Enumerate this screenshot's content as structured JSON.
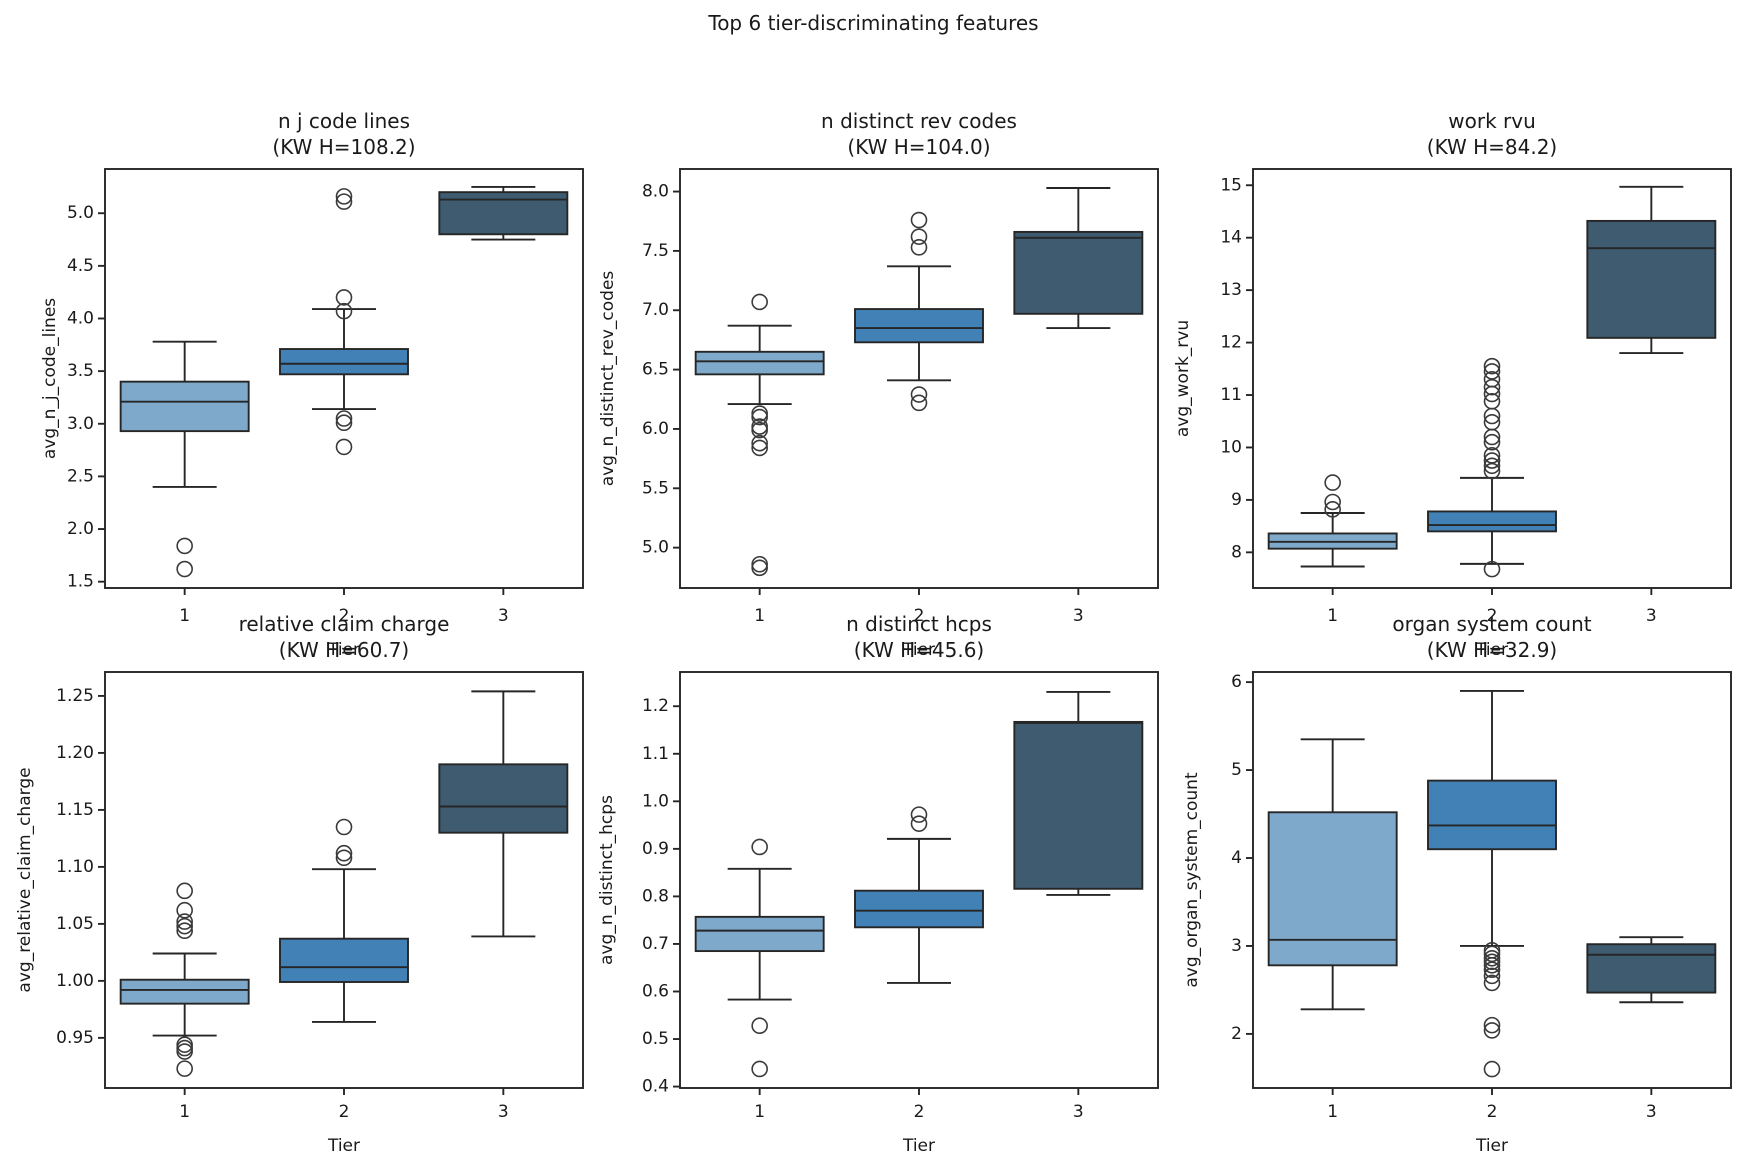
{
  "figure": {
    "title": "Top 6 tier-discriminating features",
    "background": "#ffffff",
    "edge_color": "#262626",
    "outlier_color": "#3a3a3a",
    "tier_colors": {
      "tier1": "#7fa9cb",
      "tier2": "#4181b5",
      "tier3": "#3e5b70"
    }
  },
  "chart_data": [
    {
      "type": "box",
      "title": "n j code lines",
      "subtitle": "(KW H=108.2)",
      "xlabel": "Tier",
      "ylabel": "avg_n_j_code_lines",
      "categories": [
        "1",
        "2",
        "3"
      ],
      "ylim": [
        1.44,
        5.42
      ],
      "ytick_values": [
        1.5,
        2.0,
        2.5,
        3.0,
        3.5,
        4.0,
        4.5,
        5.0
      ],
      "ytick_labels": [
        "1.5",
        "2.0",
        "2.5",
        "3.0",
        "3.5",
        "4.0",
        "4.5",
        "5.0"
      ],
      "boxes": [
        {
          "category": "1",
          "color": "#7fa9cb",
          "whislo": 2.4,
          "q1": 2.93,
          "med": 3.21,
          "q3": 3.4,
          "whishi": 3.78,
          "outliers": [
            1.84,
            1.62
          ]
        },
        {
          "category": "2",
          "color": "#4181b5",
          "whislo": 3.14,
          "q1": 3.47,
          "med": 3.57,
          "q3": 3.71,
          "whishi": 4.09,
          "outliers": [
            5.16,
            5.11,
            4.2,
            4.07,
            3.05,
            3.01,
            2.78
          ]
        },
        {
          "category": "3",
          "color": "#3e5b70",
          "whislo": 4.75,
          "q1": 4.8,
          "med": 5.13,
          "q3": 5.2,
          "whishi": 5.25,
          "outliers": []
        }
      ]
    },
    {
      "type": "box",
      "title": "n distinct rev codes",
      "subtitle": "(KW H=104.0)",
      "xlabel": "Tier",
      "ylabel": "avg_n_distinct_rev_codes",
      "categories": [
        "1",
        "2",
        "3"
      ],
      "ylim": [
        4.66,
        8.19
      ],
      "ytick_values": [
        5.0,
        5.5,
        6.0,
        6.5,
        7.0,
        7.5,
        8.0
      ],
      "ytick_labels": [
        "5.0",
        "5.5",
        "6.0",
        "6.5",
        "7.0",
        "7.5",
        "8.0"
      ],
      "boxes": [
        {
          "category": "1",
          "color": "#7fa9cb",
          "whislo": 6.21,
          "q1": 6.46,
          "med": 6.57,
          "q3": 6.65,
          "whishi": 6.87,
          "outliers": [
            7.07,
            6.13,
            6.1,
            6.02,
            5.99,
            5.88,
            5.84,
            4.86,
            4.83
          ]
        },
        {
          "category": "2",
          "color": "#4181b5",
          "whislo": 6.41,
          "q1": 6.73,
          "med": 6.85,
          "q3": 7.01,
          "whishi": 7.37,
          "outliers": [
            7.76,
            7.62,
            7.53,
            6.29,
            6.22
          ]
        },
        {
          "category": "3",
          "color": "#3e5b70",
          "whislo": 6.85,
          "q1": 6.97,
          "med": 7.61,
          "q3": 7.66,
          "whishi": 8.03,
          "outliers": []
        }
      ]
    },
    {
      "type": "box",
      "title": "work rvu",
      "subtitle": "(KW H=84.2)",
      "xlabel": "Tier",
      "ylabel": "avg_work_rvu",
      "categories": [
        "1",
        "2",
        "3"
      ],
      "ylim": [
        7.32,
        15.31
      ],
      "ytick_values": [
        8,
        9,
        10,
        11,
        12,
        13,
        14,
        15
      ],
      "ytick_labels": [
        "8",
        "9",
        "10",
        "11",
        "12",
        "13",
        "14",
        "15"
      ],
      "boxes": [
        {
          "category": "1",
          "color": "#7fa9cb",
          "whislo": 7.73,
          "q1": 8.07,
          "med": 8.2,
          "q3": 8.36,
          "whishi": 8.75,
          "outliers": [
            9.33,
            8.96,
            8.82
          ]
        },
        {
          "category": "2",
          "color": "#4181b5",
          "whislo": 7.78,
          "q1": 8.4,
          "med": 8.52,
          "q3": 8.78,
          "whishi": 9.42,
          "outliers": [
            11.55,
            11.45,
            11.3,
            11.15,
            11.02,
            10.88,
            10.6,
            10.48,
            10.2,
            10.1,
            9.85,
            9.75,
            9.65,
            9.55,
            7.68
          ]
        },
        {
          "category": "3",
          "color": "#3e5b70",
          "whislo": 11.8,
          "q1": 12.09,
          "med": 13.8,
          "q3": 14.32,
          "whishi": 14.97,
          "outliers": []
        }
      ]
    },
    {
      "type": "box",
      "title": "relative claim charge",
      "subtitle": "(KW H=60.7)",
      "xlabel": "Tier",
      "ylabel": "avg_relative_claim_charge",
      "categories": [
        "1",
        "2",
        "3"
      ],
      "ylim": [
        0.906,
        1.271
      ],
      "ytick_values": [
        0.95,
        1.0,
        1.05,
        1.1,
        1.15,
        1.2,
        1.25
      ],
      "ytick_labels": [
        "0.95",
        "1.00",
        "1.05",
        "1.10",
        "1.15",
        "1.20",
        "1.25"
      ],
      "boxes": [
        {
          "category": "1",
          "color": "#7fa9cb",
          "whislo": 0.952,
          "q1": 0.98,
          "med": 0.992,
          "q3": 1.001,
          "whishi": 1.024,
          "outliers": [
            1.079,
            1.062,
            1.052,
            1.048,
            1.044,
            0.944,
            0.941,
            0.938,
            0.923
          ]
        },
        {
          "category": "2",
          "color": "#4181b5",
          "whislo": 0.964,
          "q1": 0.999,
          "med": 1.012,
          "q3": 1.037,
          "whishi": 1.098,
          "outliers": [
            1.135,
            1.112,
            1.108
          ]
        },
        {
          "category": "3",
          "color": "#3e5b70",
          "whislo": 1.039,
          "q1": 1.13,
          "med": 1.153,
          "q3": 1.19,
          "whishi": 1.254,
          "outliers": []
        }
      ]
    },
    {
      "type": "box",
      "title": "n distinct hcps",
      "subtitle": "(KW H=45.6)",
      "xlabel": "Tier",
      "ylabel": "avg_n_distinct_hcps",
      "categories": [
        "1",
        "2",
        "3"
      ],
      "ylim": [
        0.397,
        1.272
      ],
      "ytick_values": [
        0.4,
        0.5,
        0.6,
        0.7,
        0.8,
        0.9,
        1.0,
        1.1,
        1.2
      ],
      "ytick_labels": [
        "0.4",
        "0.5",
        "0.6",
        "0.7",
        "0.8",
        "0.9",
        "1.0",
        "1.1",
        "1.2"
      ],
      "boxes": [
        {
          "category": "1",
          "color": "#7fa9cb",
          "whislo": 0.583,
          "q1": 0.685,
          "med": 0.728,
          "q3": 0.757,
          "whishi": 0.858,
          "outliers": [
            0.904,
            0.528,
            0.437
          ]
        },
        {
          "category": "2",
          "color": "#4181b5",
          "whislo": 0.618,
          "q1": 0.735,
          "med": 0.77,
          "q3": 0.812,
          "whishi": 0.921,
          "outliers": [
            0.972,
            0.953
          ]
        },
        {
          "category": "3",
          "color": "#3e5b70",
          "whislo": 0.803,
          "q1": 0.816,
          "med": 1.165,
          "q3": 1.167,
          "whishi": 1.23,
          "outliers": []
        }
      ]
    },
    {
      "type": "box",
      "title": "organ system count",
      "subtitle": "(KW H=32.9)",
      "xlabel": "Tier",
      "ylabel": "avg_organ_system_count",
      "categories": [
        "1",
        "2",
        "3"
      ],
      "ylim": [
        1.385,
        6.115
      ],
      "ytick_values": [
        2,
        3,
        4,
        5,
        6
      ],
      "ytick_labels": [
        "2",
        "3",
        "4",
        "5",
        "6"
      ],
      "boxes": [
        {
          "category": "1",
          "color": "#7fa9cb",
          "whislo": 2.28,
          "q1": 2.78,
          "med": 3.07,
          "q3": 4.52,
          "whishi": 5.35,
          "outliers": []
        },
        {
          "category": "2",
          "color": "#4181b5",
          "whislo": 3.0,
          "q1": 4.1,
          "med": 4.37,
          "q3": 4.88,
          "whishi": 5.9,
          "outliers": [
            2.95,
            2.91,
            2.86,
            2.82,
            2.78,
            2.73,
            2.66,
            2.58,
            2.1,
            2.04,
            1.6
          ]
        },
        {
          "category": "3",
          "color": "#3e5b70",
          "whislo": 2.36,
          "q1": 2.47,
          "med": 2.9,
          "q3": 3.02,
          "whishi": 3.1,
          "outliers": []
        }
      ]
    }
  ]
}
